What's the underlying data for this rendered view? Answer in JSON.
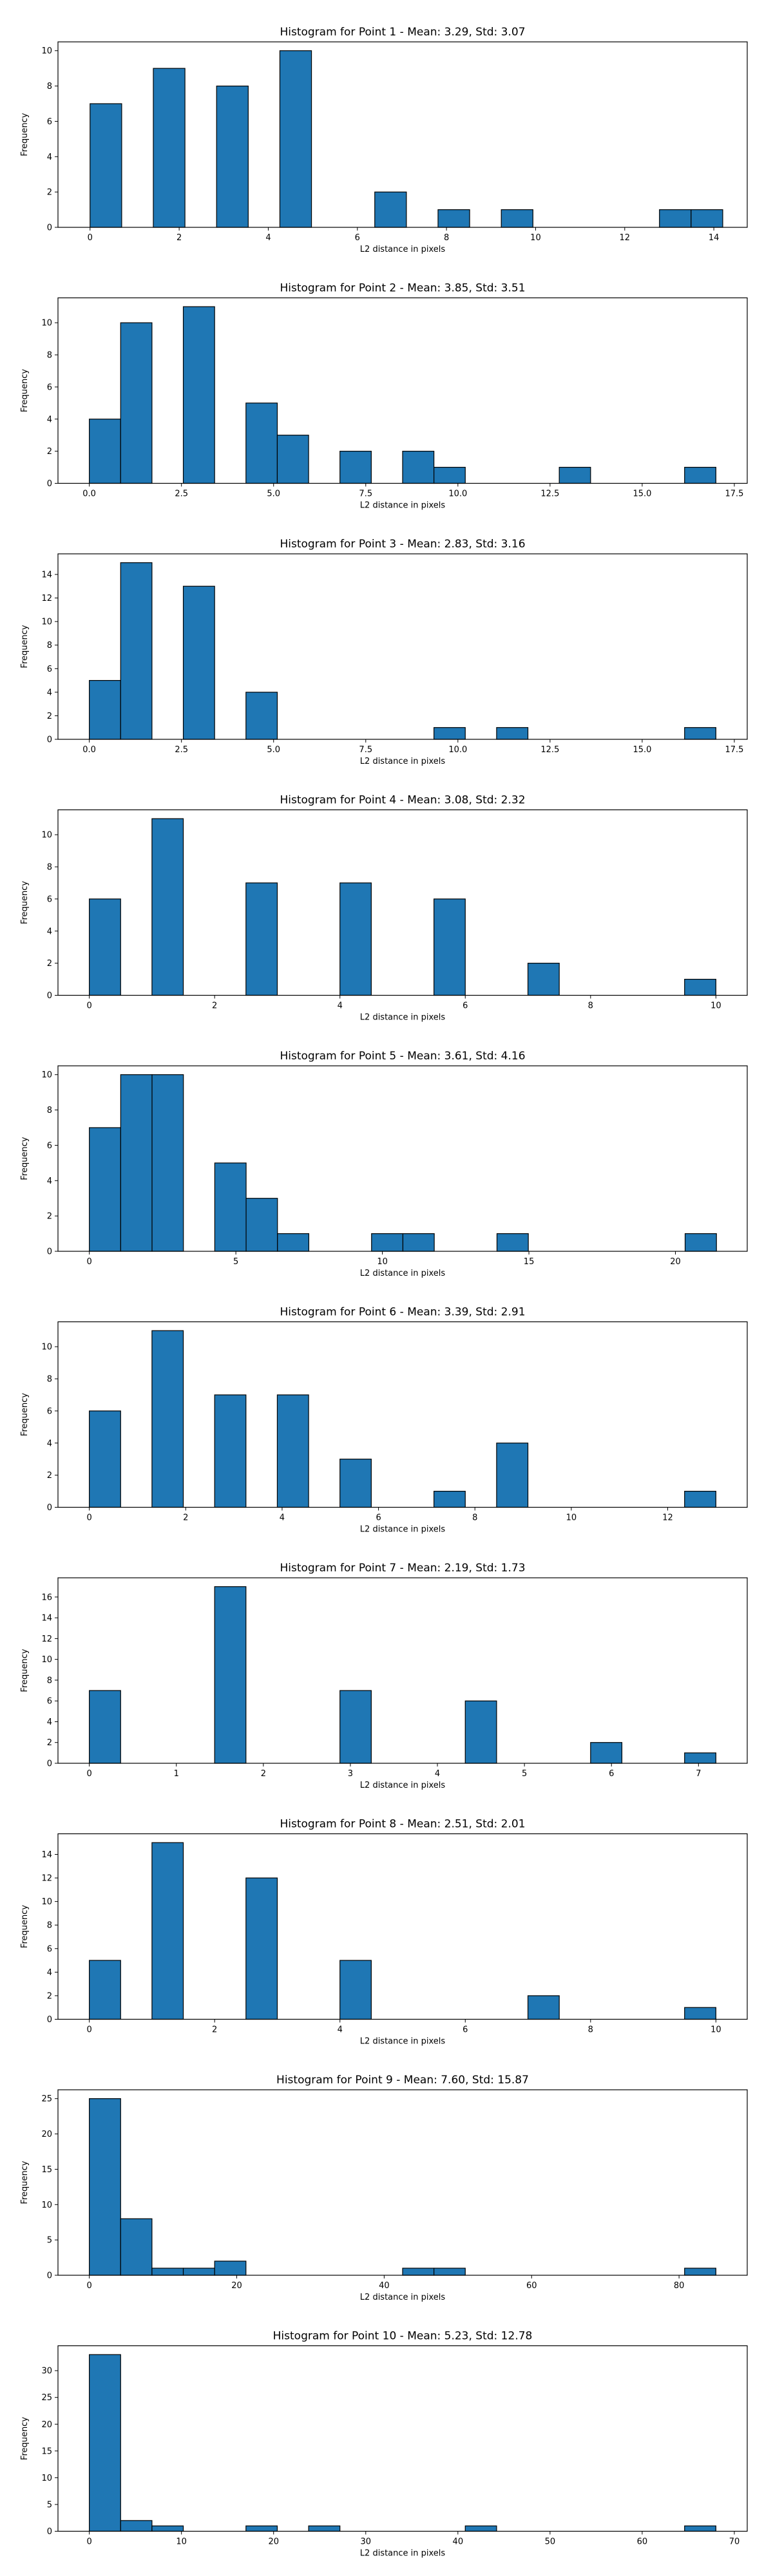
{
  "chart_data": [
    {
      "type": "bar",
      "title": "Histogram for Point 1 - Mean: 3.29, Std: 3.07",
      "xlabel": "L2 distance in pixels",
      "ylabel": "Frequency",
      "xlim": [
        -0.72,
        14.75
      ],
      "ylim": [
        0,
        10.5
      ],
      "xticks": [
        0,
        2,
        4,
        6,
        8,
        10,
        12,
        14
      ],
      "yticks": [
        0,
        2,
        4,
        6,
        8,
        10
      ],
      "bin_edges": [
        0.0,
        0.71,
        1.42,
        2.13,
        2.84,
        3.55,
        4.26,
        4.97,
        5.68,
        6.39,
        7.1,
        7.81,
        8.52,
        9.23,
        9.94,
        10.65,
        11.36,
        12.07,
        12.78,
        13.49,
        14.2
      ],
      "counts": [
        7,
        0,
        9,
        0,
        8,
        0,
        10,
        0,
        0,
        2,
        0,
        1,
        0,
        1,
        0,
        0,
        0,
        0,
        1,
        1
      ],
      "color": "#1f77b4",
      "edgecolor": "#000000",
      "grid": false
    },
    {
      "type": "bar",
      "title": "Histogram for Point 2 - Mean: 3.85, Std: 3.51",
      "xlabel": "L2 distance in pixels",
      "ylabel": "Frequency",
      "xlim": [
        -0.85,
        17.85
      ],
      "ylim": [
        0,
        11.55
      ],
      "xticks": [
        0.0,
        2.5,
        5.0,
        7.5,
        10.0,
        12.5,
        15.0,
        17.5
      ],
      "yticks": [
        0,
        2,
        4,
        6,
        8,
        10
      ],
      "bin_edges": [
        0.0,
        0.85,
        1.7,
        2.55,
        3.4,
        4.25,
        5.1,
        5.95,
        6.8,
        7.65,
        8.5,
        9.35,
        10.2,
        11.05,
        11.9,
        12.75,
        13.6,
        14.45,
        15.3,
        16.15,
        17.0
      ],
      "counts": [
        4,
        10,
        0,
        11,
        0,
        5,
        3,
        0,
        2,
        0,
        2,
        1,
        0,
        0,
        0,
        1,
        0,
        0,
        0,
        1
      ],
      "color": "#1f77b4",
      "edgecolor": "#000000",
      "grid": false
    },
    {
      "type": "bar",
      "title": "Histogram for Point 3 - Mean: 2.83, Std: 3.16",
      "xlabel": "L2 distance in pixels",
      "ylabel": "Frequency",
      "xlim": [
        -0.85,
        17.85
      ],
      "ylim": [
        0,
        15.75
      ],
      "xticks": [
        0.0,
        2.5,
        5.0,
        7.5,
        10.0,
        12.5,
        15.0,
        17.5
      ],
      "yticks": [
        0,
        2,
        4,
        6,
        8,
        10,
        12,
        14
      ],
      "bin_edges": [
        0.0,
        0.85,
        1.7,
        2.55,
        3.4,
        4.25,
        5.1,
        5.95,
        6.8,
        7.65,
        8.5,
        9.35,
        10.2,
        11.05,
        11.9,
        12.75,
        13.6,
        14.45,
        15.3,
        16.15,
        17.0
      ],
      "counts": [
        5,
        15,
        0,
        13,
        0,
        4,
        0,
        0,
        0,
        0,
        0,
        1,
        0,
        1,
        0,
        0,
        0,
        0,
        0,
        1
      ],
      "color": "#1f77b4",
      "edgecolor": "#000000",
      "grid": false
    },
    {
      "type": "bar",
      "title": "Histogram for Point 4 - Mean: 3.08, Std: 2.32",
      "xlabel": "L2 distance in pixels",
      "ylabel": "Frequency",
      "xlim": [
        -0.5,
        10.5
      ],
      "ylim": [
        0,
        11.55
      ],
      "xticks": [
        0,
        2,
        4,
        6,
        8,
        10
      ],
      "yticks": [
        0,
        2,
        4,
        6,
        8,
        10
      ],
      "bin_edges": [
        0.0,
        0.5,
        1.0,
        1.5,
        2.0,
        2.5,
        3.0,
        3.5,
        4.0,
        4.5,
        5.0,
        5.5,
        6.0,
        6.5,
        7.0,
        7.5,
        8.0,
        8.5,
        9.0,
        9.5,
        10.0
      ],
      "counts": [
        6,
        0,
        11,
        0,
        0,
        7,
        0,
        0,
        7,
        0,
        0,
        6,
        0,
        0,
        2,
        0,
        0,
        0,
        0,
        1
      ],
      "color": "#1f77b4",
      "edgecolor": "#000000",
      "grid": false
    },
    {
      "type": "bar",
      "title": "Histogram for Point 5 - Mean: 3.61, Std: 4.16",
      "xlabel": "L2 distance in pixels",
      "ylabel": "Frequency",
      "xlim": [
        -1.07,
        22.45
      ],
      "ylim": [
        0,
        10.5
      ],
      "xticks": [
        0,
        5,
        10,
        15,
        20
      ],
      "yticks": [
        0,
        2,
        4,
        6,
        8,
        10
      ],
      "bin_edges": [
        0.0,
        1.07,
        2.14,
        3.21,
        4.28,
        5.35,
        6.42,
        7.49,
        8.56,
        9.63,
        10.7,
        11.77,
        12.84,
        13.91,
        14.98,
        16.05,
        17.12,
        18.19,
        19.26,
        20.33,
        21.4
      ],
      "counts": [
        7,
        10,
        10,
        0,
        5,
        3,
        1,
        0,
        0,
        1,
        1,
        0,
        0,
        1,
        0,
        0,
        0,
        0,
        0,
        1
      ],
      "color": "#1f77b4",
      "edgecolor": "#000000",
      "grid": false
    },
    {
      "type": "bar",
      "title": "Histogram for Point 6 - Mean: 3.39, Std: 2.91",
      "xlabel": "L2 distance in pixels",
      "ylabel": "Frequency",
      "xlim": [
        -0.65,
        13.65
      ],
      "ylim": [
        0,
        11.55
      ],
      "xticks": [
        0,
        2,
        4,
        6,
        8,
        10,
        12
      ],
      "yticks": [
        0,
        2,
        4,
        6,
        8,
        10
      ],
      "bin_edges": [
        0.0,
        0.65,
        1.3,
        1.95,
        2.6,
        3.25,
        3.9,
        4.55,
        5.2,
        5.85,
        6.5,
        7.15,
        7.8,
        8.45,
        9.1,
        9.75,
        10.4,
        11.05,
        11.7,
        12.35,
        13.0
      ],
      "counts": [
        6,
        0,
        11,
        0,
        7,
        0,
        7,
        0,
        3,
        0,
        0,
        1,
        0,
        4,
        0,
        0,
        0,
        0,
        0,
        1
      ],
      "color": "#1f77b4",
      "edgecolor": "#000000",
      "grid": false
    },
    {
      "type": "bar",
      "title": "Histogram for Point 7 - Mean: 2.19, Std: 1.73",
      "xlabel": "L2 distance in pixels",
      "ylabel": "Frequency",
      "xlim": [
        -0.36,
        7.56
      ],
      "ylim": [
        0,
        17.85
      ],
      "xticks": [
        0,
        1,
        2,
        3,
        4,
        5,
        6,
        7
      ],
      "yticks": [
        0,
        2,
        4,
        6,
        8,
        10,
        12,
        14,
        16
      ],
      "bin_edges": [
        0.0,
        0.36,
        0.72,
        1.08,
        1.44,
        1.8,
        2.16,
        2.52,
        2.88,
        3.24,
        3.6,
        3.96,
        4.32,
        4.68,
        5.04,
        5.4,
        5.76,
        6.12,
        6.48,
        6.84,
        7.2
      ],
      "counts": [
        7,
        0,
        0,
        0,
        17,
        0,
        0,
        0,
        7,
        0,
        0,
        0,
        6,
        0,
        0,
        0,
        2,
        0,
        0,
        1
      ],
      "color": "#1f77b4",
      "edgecolor": "#000000",
      "grid": false
    },
    {
      "type": "bar",
      "title": "Histogram for Point 8 - Mean: 2.51, Std: 2.01",
      "xlabel": "L2 distance in pixels",
      "ylabel": "Frequency",
      "xlim": [
        -0.5,
        10.5
      ],
      "ylim": [
        0,
        15.75
      ],
      "xticks": [
        0,
        2,
        4,
        6,
        8,
        10
      ],
      "yticks": [
        0,
        2,
        4,
        6,
        8,
        10,
        12,
        14
      ],
      "bin_edges": [
        0.0,
        0.5,
        1.0,
        1.5,
        2.0,
        2.5,
        3.0,
        3.5,
        4.0,
        4.5,
        5.0,
        5.5,
        6.0,
        6.5,
        7.0,
        7.5,
        8.0,
        8.5,
        9.0,
        9.5,
        10.0
      ],
      "counts": [
        5,
        0,
        15,
        0,
        0,
        12,
        0,
        0,
        5,
        0,
        0,
        0,
        0,
        0,
        2,
        0,
        0,
        0,
        0,
        1
      ],
      "color": "#1f77b4",
      "edgecolor": "#000000",
      "grid": false
    },
    {
      "type": "bar",
      "title": "Histogram for Point 9 - Mean: 7.60, Std: 15.87",
      "xlabel": "L2 distance in pixels",
      "ylabel": "Frequency",
      "xlim": [
        -4.25,
        89.25
      ],
      "ylim": [
        0,
        26.25
      ],
      "xticks": [
        0,
        20,
        40,
        60,
        80
      ],
      "yticks": [
        0,
        5,
        10,
        15,
        20,
        25
      ],
      "bin_edges": [
        0.0,
        4.25,
        8.5,
        12.75,
        17.0,
        21.25,
        25.5,
        29.75,
        34.0,
        38.25,
        42.5,
        46.75,
        51.0,
        55.25,
        59.5,
        63.75,
        68.0,
        72.25,
        76.5,
        80.75,
        85.0
      ],
      "counts": [
        25,
        8,
        1,
        1,
        2,
        0,
        0,
        0,
        0,
        0,
        1,
        1,
        0,
        0,
        0,
        0,
        0,
        0,
        0,
        1
      ],
      "color": "#1f77b4",
      "edgecolor": "#000000",
      "grid": false
    },
    {
      "type": "bar",
      "title": "Histogram for Point 10 - Mean: 5.23, Std: 12.78",
      "xlabel": "L2 distance in pixels",
      "ylabel": "Frequency",
      "xlim": [
        -3.4,
        71.4
      ],
      "ylim": [
        0,
        34.65
      ],
      "xticks": [
        0,
        10,
        20,
        30,
        40,
        50,
        60,
        70
      ],
      "yticks": [
        0,
        5,
        10,
        15,
        20,
        25,
        30
      ],
      "bin_edges": [
        0.0,
        3.4,
        6.8,
        10.2,
        13.6,
        17.0,
        20.4,
        23.8,
        27.2,
        30.6,
        34.0,
        37.4,
        40.8,
        44.2,
        47.6,
        51.0,
        54.4,
        57.8,
        61.2,
        64.6,
        68.0
      ],
      "counts": [
        33,
        2,
        1,
        0,
        0,
        1,
        0,
        1,
        0,
        0,
        0,
        0,
        1,
        0,
        0,
        0,
        0,
        0,
        0,
        1
      ],
      "color": "#1f77b4",
      "edgecolor": "#000000",
      "grid": false
    }
  ]
}
